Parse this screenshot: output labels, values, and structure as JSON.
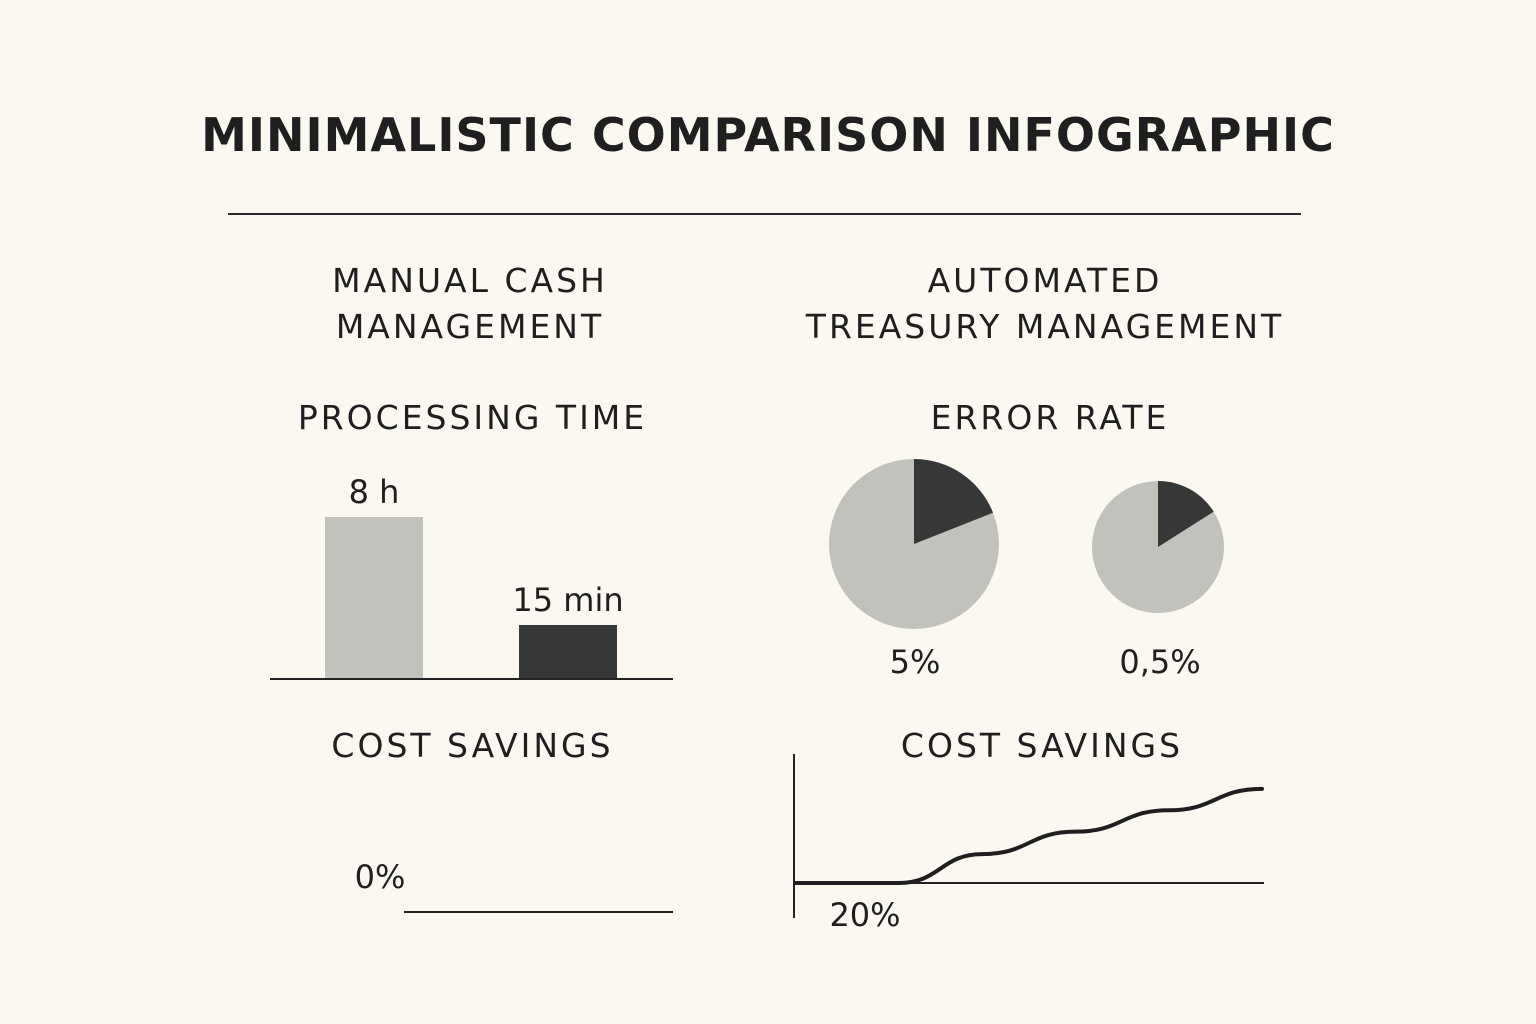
{
  "title": "MINIMALISTIC COMPARISON INFOGRAPHIC",
  "columns": {
    "left": "MANUAL CASH\nMANAGEMENT",
    "right": "AUTOMATED\nTREASURY MANAGEMENT"
  },
  "colors": {
    "light": "#c2c2bc",
    "dark": "#353837",
    "background": "#fbf8f2",
    "ink": "#1f1f1f"
  },
  "chart_data": [
    {
      "type": "bar",
      "title": "PROCESSING TIME",
      "categories": [
        "",
        ""
      ],
      "values": [
        8,
        0.25
      ],
      "unit": "h",
      "data_labels": [
        "8 h",
        "15 min"
      ],
      "bar_colors": [
        "#c2c2bc",
        "#353837"
      ]
    },
    {
      "type": "pie",
      "title": "ERROR RATE",
      "pies": [
        {
          "label": "5%",
          "highlight_fraction": 0.19
        },
        {
          "label": "0,5%",
          "highlight_fraction": 0.16
        }
      ]
    },
    {
      "type": "line",
      "title": "COST SAVINGS",
      "data_labels": [
        "0%"
      ],
      "series": [
        {
          "values": [
            0,
            0
          ]
        }
      ]
    },
    {
      "type": "line",
      "title": "COST SAVINGS",
      "data_labels": [
        "20%"
      ],
      "x": [
        0,
        0.22,
        0.4,
        0.6,
        0.8,
        1.0
      ],
      "series": [
        {
          "values": [
            0,
            0,
            0.27,
            0.48,
            0.68,
            0.88
          ]
        }
      ]
    }
  ]
}
